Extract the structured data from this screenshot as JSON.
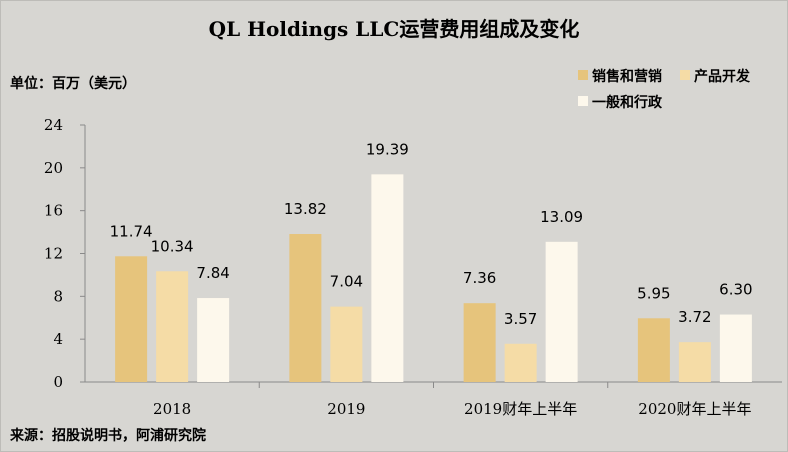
{
  "chart_data": {
    "type": "bar",
    "title": "QL Holdings LLC运营费用组成及变化",
    "unit_label": "单位：百万（美元）",
    "source": "来源：招股说明书，阿浦研究院",
    "categories": [
      "2018",
      "2019",
      "2019财年上半年",
      "2020财年上半年"
    ],
    "series": [
      {
        "name": "销售和营销",
        "color": "#e6c47c",
        "values": [
          11.74,
          13.82,
          7.36,
          5.95
        ],
        "labels": [
          "11.74",
          "13.82",
          "7.36",
          "5.95"
        ]
      },
      {
        "name": "产品开发",
        "color": "#f5dca6",
        "values": [
          10.34,
          7.04,
          3.57,
          3.72
        ],
        "labels": [
          "10.34",
          "7.04",
          "3.57",
          "3.72"
        ]
      },
      {
        "name": "一般和行政",
        "color": "#fdf8ec",
        "values": [
          7.84,
          19.39,
          13.09,
          6.3
        ],
        "labels": [
          "7.84",
          "19.39",
          "13.09",
          "6.30"
        ]
      }
    ],
    "yticks": [
      "0",
      "4",
      "8",
      "12",
      "16",
      "20",
      "24"
    ],
    "ylim": [
      0,
      24
    ],
    "legend_position": "top-right",
    "grid": false
  }
}
